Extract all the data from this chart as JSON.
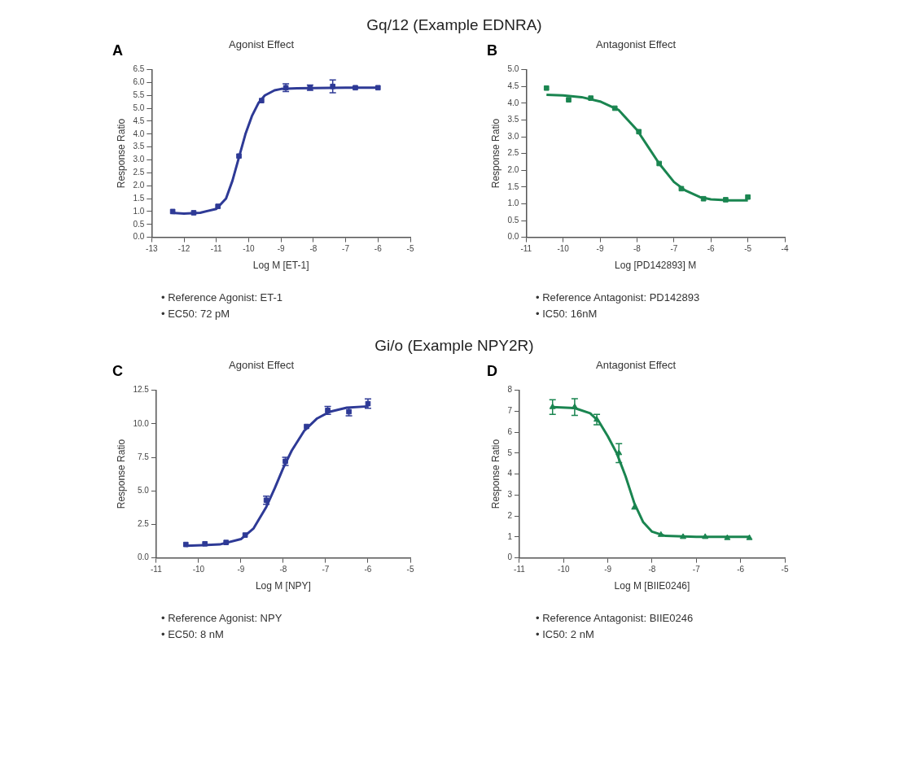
{
  "chart_data": [
    {
      "type": "scatter",
      "subtitle": "Gq/12 (Example EDNRA)",
      "title": "Agonist Effect",
      "xlabel": "Log M [ET-1]",
      "ylabel": "Response Ratio",
      "xlim": [
        -13,
        -5
      ],
      "xticks": [
        -13,
        -12,
        -11,
        -10,
        -9,
        -8,
        -7,
        -6,
        -5
      ],
      "ylim": [
        0,
        6.5
      ],
      "yticks": [
        {
          "value": 0,
          "label": "0.0"
        },
        {
          "value": 0.5,
          "label": "0.5"
        },
        {
          "value": 1,
          "label": "1.0"
        },
        {
          "value": 1.5,
          "label": "1.5"
        },
        {
          "value": 2,
          "label": "2.0"
        },
        {
          "value": 2.5,
          "label": "2.5"
        },
        {
          "value": 3,
          "label": "3.0"
        },
        {
          "value": 3.5,
          "label": "3.5"
        },
        {
          "value": 4,
          "label": "4.0"
        },
        {
          "value": 4.5,
          "label": "4.5"
        },
        {
          "value": 5,
          "label": "5.0"
        },
        {
          "value": 5.5,
          "label": "5.5"
        },
        {
          "value": 6,
          "label": "6.0"
        },
        {
          "value": 6.5,
          "label": "6.5"
        }
      ],
      "grid": false,
      "legend": false,
      "annotations": [
        "A",
        "• Reference Agonist: ET-1",
        "• EC50: 72 pM"
      ],
      "series": [
        {
          "type": "scatter",
          "color": "#2e3a96",
          "marker": "square",
          "x": [
            -12.35,
            -11.7,
            -10.95,
            -10.3,
            -9.6,
            -8.85,
            -8.1,
            -7.4,
            -6.7,
            -6.0
          ],
          "values": [
            1.0,
            0.95,
            1.2,
            3.15,
            5.3,
            5.8,
            5.8,
            5.85,
            5.8,
            5.8
          ],
          "errors": [
            null,
            null,
            null,
            null,
            null,
            0.15,
            0.1,
            0.25,
            null,
            null
          ]
        },
        {
          "type": "line",
          "color": "#2e3a96",
          "marker": "none",
          "line_style": "solid",
          "x": [
            -12.4,
            -12,
            -11.5,
            -11,
            -10.7,
            -10.5,
            -10.3,
            -10.1,
            -9.9,
            -9.7,
            -9.5,
            -9.2,
            -9,
            -8.5,
            -7,
            -6
          ],
          "values": [
            0.95,
            0.92,
            0.95,
            1.1,
            1.5,
            2.2,
            3.1,
            4.0,
            4.7,
            5.2,
            5.5,
            5.7,
            5.75,
            5.78,
            5.8,
            5.8
          ]
        }
      ]
    },
    {
      "type": "scatter",
      "title": "Antagonist Effect",
      "xlabel": "Log [PD142893] M",
      "ylabel": "Response Ratio",
      "xlim": [
        -11,
        -4
      ],
      "xticks": [
        -11,
        -10,
        -9,
        -8,
        -7,
        -6,
        -5,
        -4
      ],
      "ylim": [
        0,
        5
      ],
      "yticks": [
        {
          "value": 0,
          "label": "0.0"
        },
        {
          "value": 0.5,
          "label": "0.5"
        },
        {
          "value": 1,
          "label": "1.0"
        },
        {
          "value": 1.5,
          "label": "1.5"
        },
        {
          "value": 2,
          "label": "2.0"
        },
        {
          "value": 2.5,
          "label": "2.5"
        },
        {
          "value": 3,
          "label": "3.0"
        },
        {
          "value": 3.5,
          "label": "3.5"
        },
        {
          "value": 4,
          "label": "4.0"
        },
        {
          "value": 4.5,
          "label": "4.5"
        },
        {
          "value": 5,
          "label": "5.0"
        }
      ],
      "grid": false,
      "legend": false,
      "annotations": [
        "B",
        "• Reference Antagonist:  PD142893",
        "• IC50: 16nM"
      ],
      "series": [
        {
          "type": "scatter",
          "color": "#1a8550",
          "marker": "square",
          "x": [
            -10.45,
            -9.85,
            -9.25,
            -8.6,
            -7.95,
            -7.4,
            -6.8,
            -6.2,
            -5.6,
            -5.0
          ],
          "values": [
            4.45,
            4.1,
            4.15,
            3.85,
            3.15,
            2.2,
            1.45,
            1.15,
            1.12,
            1.2
          ]
        },
        {
          "type": "line",
          "color": "#1a8550",
          "marker": "none",
          "line_style": "solid",
          "x": [
            -10.45,
            -10,
            -9.5,
            -9,
            -8.5,
            -8,
            -7.7,
            -7.4,
            -7,
            -6.7,
            -6.3,
            -6,
            -5.5,
            -5
          ],
          "values": [
            4.25,
            4.23,
            4.18,
            4.05,
            3.8,
            3.2,
            2.7,
            2.2,
            1.65,
            1.4,
            1.2,
            1.13,
            1.1,
            1.1
          ]
        }
      ]
    },
    {
      "type": "scatter",
      "subtitle": "Gi/o (Example NPY2R)",
      "title": "Agonist Effect",
      "xlabel": "Log M [NPY]",
      "ylabel": "Response Ratio",
      "xlim": [
        -11,
        -5
      ],
      "xticks": [
        -11,
        -10,
        -9,
        -8,
        -7,
        -6,
        -5
      ],
      "ylim": [
        0,
        12.5
      ],
      "yticks": [
        {
          "value": 0,
          "label": "0.0"
        },
        {
          "value": 2.5,
          "label": "2.5"
        },
        {
          "value": 5,
          "label": "5.0"
        },
        {
          "value": 7.5,
          "label": "7.5"
        },
        {
          "value": 10,
          "label": "10.0"
        },
        {
          "value": 12.5,
          "label": "12.5"
        }
      ],
      "grid": false,
      "legend": false,
      "annotations": [
        "C",
        "• Reference Agonist: NPY",
        "• EC50: 8 nM"
      ],
      "series": [
        {
          "type": "scatter",
          "color": "#2e3a96",
          "marker": "square",
          "x": [
            -10.3,
            -9.85,
            -9.35,
            -8.9,
            -8.4,
            -7.95,
            -7.45,
            -6.95,
            -6.45,
            -6.0
          ],
          "values": [
            1.0,
            1.05,
            1.15,
            1.7,
            4.3,
            7.2,
            9.8,
            11.0,
            10.9,
            11.5
          ],
          "errors": [
            null,
            null,
            null,
            null,
            0.3,
            0.3,
            null,
            0.3,
            0.3,
            0.35
          ]
        },
        {
          "type": "line",
          "color": "#2e3a96",
          "marker": "none",
          "line_style": "solid",
          "x": [
            -10.3,
            -9.5,
            -9,
            -8.7,
            -8.4,
            -8.2,
            -8,
            -7.8,
            -7.5,
            -7.2,
            -6.9,
            -6.5,
            -6
          ],
          "values": [
            0.9,
            1.0,
            1.4,
            2.2,
            3.8,
            5.2,
            6.7,
            8.0,
            9.5,
            10.4,
            10.9,
            11.2,
            11.3
          ]
        }
      ]
    },
    {
      "type": "scatter",
      "title": "Antagonist Effect",
      "xlabel": "Log M [BIIE0246]",
      "ylabel": "Response Ratio",
      "xlim": [
        -11,
        -5
      ],
      "xticks": [
        -11,
        -10,
        -9,
        -8,
        -7,
        -6,
        -5
      ],
      "ylim": [
        0,
        8
      ],
      "yticks": [
        0,
        1,
        2,
        3,
        4,
        5,
        6,
        7,
        8
      ],
      "grid": false,
      "legend": false,
      "annotations": [
        "D",
        "• Reference Antagonist: BIIE0246",
        "• IC50: 2 nM"
      ],
      "series": [
        {
          "type": "scatter",
          "color": "#1a8550",
          "marker": "triangle",
          "x": [
            -10.25,
            -9.75,
            -9.25,
            -8.75,
            -8.4,
            -7.8,
            -7.3,
            -6.8,
            -6.3,
            -5.8
          ],
          "values": [
            7.2,
            7.2,
            6.6,
            5.0,
            2.4,
            1.1,
            1.0,
            1.0,
            0.95,
            0.95
          ],
          "errors": [
            0.35,
            0.4,
            0.25,
            0.45,
            null,
            null,
            null,
            null,
            null,
            null
          ]
        },
        {
          "type": "line",
          "color": "#1a8550",
          "marker": "none",
          "line_style": "solid",
          "x": [
            -10.25,
            -9.75,
            -9.4,
            -9.2,
            -9,
            -8.8,
            -8.6,
            -8.4,
            -8.2,
            -8,
            -7.7,
            -7,
            -5.8
          ],
          "values": [
            7.2,
            7.15,
            6.9,
            6.5,
            5.8,
            5.0,
            3.9,
            2.6,
            1.7,
            1.25,
            1.05,
            1.0,
            1.0
          ]
        }
      ]
    }
  ]
}
